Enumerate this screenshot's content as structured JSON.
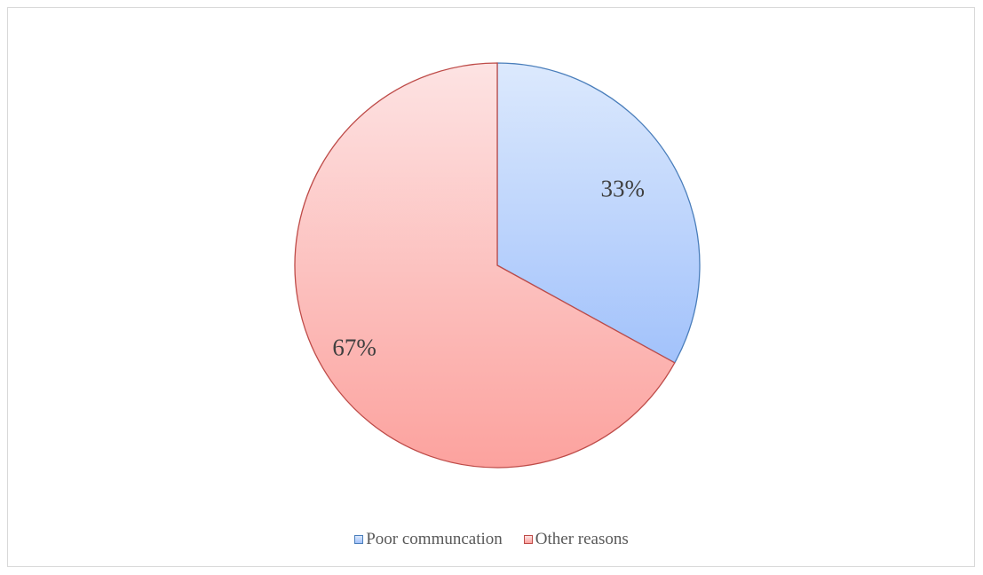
{
  "chart_data": {
    "type": "pie",
    "title": "",
    "labels": [
      "Poor communcation",
      "Other reasons"
    ],
    "values": [
      33,
      67
    ],
    "data_labels": [
      "33%",
      "67%"
    ],
    "start_angle": "12 o'clock, clockwise",
    "legend_position": "bottom",
    "colors": {
      "Poor communcation": {
        "fill_top": "#dce9fd",
        "fill_bottom": "#a2c2fb",
        "stroke": "#4a7ebb"
      },
      "Other reasons": {
        "fill_top": "#fde3e3",
        "fill_bottom": "#fca29e",
        "stroke": "#be4b48"
      }
    }
  }
}
